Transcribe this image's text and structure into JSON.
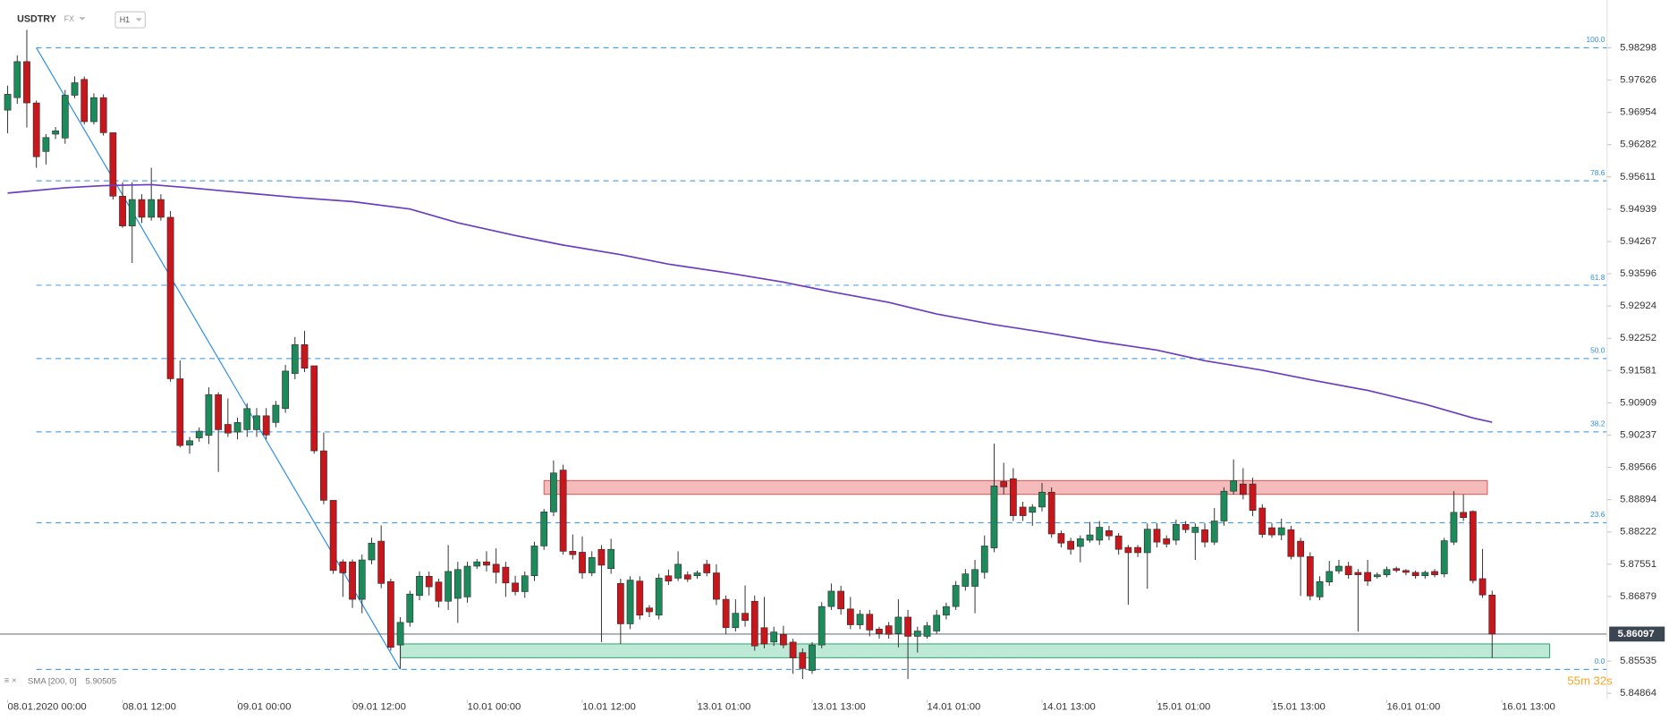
{
  "chart_data": {
    "type": "candlestick",
    "symbol": "USDTRY",
    "market": "FX",
    "interval": "H1",
    "colors": {
      "up": "#1d8a5b",
      "down": "#c8161d",
      "outline": "#2b2b2b"
    },
    "open": [
      5.97,
      5.9726,
      5.9801,
      5.9715,
      5.9614,
      5.965,
      5.9642,
      5.9731,
      5.9764,
      5.9676,
      5.9726,
      5.9653,
      5.9521,
      5.9459,
      5.9514,
      5.9477,
      5.9514,
      5.9477,
      5.9141,
      5.9003,
      5.9018,
      5.9023,
      5.9108,
      5.9046,
      5.903,
      5.9035,
      5.9035,
      5.9064,
      5.905,
      5.9079,
      5.9152,
      5.9212,
      5.9168,
      5.8991,
      5.8888,
      5.876,
      5.876,
      5.8682,
      5.8764,
      5.8803,
      5.8719,
      5.8587,
      5.8634,
      5.869,
      5.873,
      5.8718,
      5.8678,
      5.8684,
      5.8687,
      5.8751,
      5.876,
      5.8755,
      5.8749,
      5.8716,
      5.8698,
      5.8731,
      5.8793,
      5.8864,
      5.8951,
      5.8782,
      5.878,
      5.8737,
      5.8786,
      5.8746,
      5.8715,
      5.8631,
      5.872,
      5.8664,
      5.8649,
      5.8731,
      5.8726,
      5.8733,
      5.8731,
      5.8755,
      5.8737,
      5.8682,
      5.8623,
      5.8653,
      5.8678,
      5.8623,
      5.8593,
      5.8609,
      5.8593,
      5.8571,
      5.8534,
      5.8587,
      5.8667,
      5.8699,
      5.8662,
      5.8629,
      5.8651,
      5.862,
      5.8627,
      5.8611,
      5.8645,
      5.8605,
      5.8605,
      5.8616,
      5.8649,
      5.8667,
      5.8709,
      5.8709,
      5.8738,
      5.8789,
      5.8927,
      5.8933,
      5.8874,
      5.8863,
      5.8874,
      5.8905,
      5.8819,
      5.8803,
      5.8792,
      5.8805,
      5.8805,
      5.8825,
      5.8814,
      5.879,
      5.879,
      5.8779,
      5.8828,
      5.8808,
      5.8805,
      5.8838,
      5.8821,
      5.8827,
      5.8801,
      5.8845,
      5.8907,
      5.8922,
      5.8922,
      5.8872,
      5.8831,
      5.8816,
      5.8827,
      5.8803,
      5.8771,
      5.8687,
      5.8718,
      5.8741,
      5.8751,
      5.8738,
      5.8738,
      5.8729,
      5.8733,
      5.8746,
      5.8742,
      5.8738,
      5.8731,
      5.874,
      5.8735,
      5.8801,
      5.8863,
      5.8865,
      5.8725,
      5.8691
    ],
    "high": [
      5.9751,
      5.9814,
      5.9867,
      5.972,
      5.965,
      5.9665,
      5.9742,
      5.977,
      5.977,
      5.9735,
      5.9733,
      5.9653,
      5.955,
      5.955,
      5.9525,
      5.958,
      5.9525,
      5.949,
      5.9179,
      5.902,
      5.904,
      5.9123,
      5.9113,
      5.91,
      5.906,
      5.909,
      5.908,
      5.908,
      5.9095,
      5.917,
      5.9228,
      5.9241,
      5.9168,
      5.9029,
      5.8888,
      5.8765,
      5.8765,
      5.8775,
      5.881,
      5.8836,
      5.8725,
      5.8645,
      5.87,
      5.874,
      5.874,
      5.8725,
      5.8795,
      5.876,
      5.876,
      5.8766,
      5.8782,
      5.8788,
      5.876,
      5.8731,
      5.874,
      5.8802,
      5.887,
      5.8971,
      5.8962,
      5.8817,
      5.8813,
      5.8782,
      5.8795,
      5.8808,
      5.8725,
      5.873,
      5.873,
      5.867,
      5.8735,
      5.8744,
      5.8782,
      5.874,
      5.8742,
      5.8764,
      5.8755,
      5.869,
      5.8682,
      5.8711,
      5.869,
      5.8687,
      5.8625,
      5.8627,
      5.86,
      5.858,
      5.8593,
      5.8676,
      5.8715,
      5.871,
      5.8687,
      5.866,
      5.866,
      5.8625,
      5.8635,
      5.8682,
      5.866,
      5.8625,
      5.8635,
      5.866,
      5.8675,
      5.872,
      5.8745,
      5.8764,
      5.8815,
      5.9006,
      5.8966,
      5.8955,
      5.8885,
      5.888,
      5.8924,
      5.8915,
      5.8825,
      5.881,
      5.8815,
      5.8843,
      5.8845,
      5.8835,
      5.882,
      5.8795,
      5.8795,
      5.884,
      5.884,
      5.8815,
      5.8848,
      5.8845,
      5.884,
      5.884,
      5.8872,
      5.8915,
      5.8973,
      5.8955,
      5.8935,
      5.888,
      5.884,
      5.885,
      5.8835,
      5.881,
      5.878,
      5.873,
      5.8762,
      5.8764,
      5.876,
      5.8745,
      5.8764,
      5.8738,
      5.875,
      5.875,
      5.8745,
      5.8742,
      5.8742,
      5.8745,
      5.881,
      5.8907,
      5.89,
      5.8867,
      5.8787,
      5.87
    ],
    "low": [
      5.9652,
      5.9713,
      5.9664,
      5.958,
      5.9587,
      5.964,
      5.963,
      5.9725,
      5.967,
      5.967,
      5.9647,
      5.9514,
      5.9455,
      5.9382,
      5.9465,
      5.947,
      5.947,
      5.9135,
      5.8998,
      5.8985,
      5.901,
      5.9005,
      5.8947,
      5.902,
      5.9015,
      5.902,
      5.902,
      5.9015,
      5.904,
      5.907,
      5.914,
      5.9155,
      5.8985,
      5.888,
      5.8735,
      5.8687,
      5.8664,
      5.8653,
      5.8755,
      5.8705,
      5.8575,
      5.8538,
      5.8625,
      5.868,
      5.869,
      5.8665,
      5.866,
      5.8633,
      5.8675,
      5.8745,
      5.874,
      5.8715,
      5.8687,
      5.869,
      5.8685,
      5.872,
      5.8785,
      5.8855,
      5.8775,
      5.8765,
      5.8725,
      5.873,
      5.8593,
      5.8735,
      5.8589,
      5.862,
      5.864,
      5.8645,
      5.864,
      5.8712,
      5.872,
      5.8718,
      5.8725,
      5.873,
      5.867,
      5.861,
      5.8615,
      5.8625,
      5.8575,
      5.858,
      5.8585,
      5.858,
      5.8527,
      5.8516,
      5.8527,
      5.858,
      5.866,
      5.865,
      5.862,
      5.862,
      5.8605,
      5.86,
      5.86,
      5.8582,
      5.8516,
      5.8571,
      5.86,
      5.861,
      5.864,
      5.866,
      5.87,
      5.8653,
      5.8725,
      5.878,
      5.89,
      5.8845,
      5.8845,
      5.8835,
      5.8865,
      5.881,
      5.879,
      5.8775,
      5.8759,
      5.88,
      5.8795,
      5.8805,
      5.8775,
      5.8671,
      5.877,
      5.8704,
      5.879,
      5.879,
      5.8795,
      5.882,
      5.8764,
      5.879,
      5.8795,
      5.8835,
      5.89,
      5.889,
      5.8855,
      5.881,
      5.881,
      5.8805,
      5.8765,
      5.8689,
      5.868,
      5.868,
      5.871,
      5.8735,
      5.8725,
      5.8615,
      5.871,
      5.8725,
      5.8728,
      5.8738,
      5.8732,
      5.8725,
      5.8725,
      5.8728,
      5.8728,
      5.8795,
      5.8845,
      5.8715,
      5.8685,
      5.856
    ],
    "close": [
      5.9733,
      5.9801,
      5.9715,
      5.9603,
      5.9643,
      5.9657,
      5.9731,
      5.9757,
      5.9676,
      5.9726,
      5.9653,
      5.9521,
      5.9459,
      5.9514,
      5.9477,
      5.9514,
      5.9477,
      5.9141,
      5.9002,
      5.9012,
      5.9032,
      5.9108,
      5.9035,
      5.9028,
      5.905,
      5.9079,
      5.9064,
      5.9024,
      5.9086,
      5.9157,
      5.9212,
      5.9163,
      5.8991,
      5.8888,
      5.8742,
      5.8737,
      5.8682,
      5.8764,
      5.8799,
      5.8715,
      5.8582,
      5.8634,
      5.8693,
      5.873,
      5.8708,
      5.8678,
      5.874,
      5.8744,
      5.8751,
      5.876,
      5.8753,
      5.8738,
      5.8716,
      5.8698,
      5.8731,
      5.8793,
      5.8864,
      5.8945,
      5.8782,
      5.8775,
      5.8737,
      5.8769,
      5.8753,
      5.8786,
      5.8631,
      5.8722,
      5.8649,
      5.8656,
      5.8726,
      5.872,
      5.8755,
      5.8724,
      5.8737,
      5.8737,
      5.8682,
      5.8623,
      5.8653,
      5.8638,
      5.8585,
      5.8589,
      5.8614,
      5.8587,
      5.856,
      5.8538,
      5.8587,
      5.8667,
      5.8699,
      5.8662,
      5.8629,
      5.8651,
      5.8618,
      5.8611,
      5.8609,
      5.8645,
      5.8605,
      5.8616,
      5.8627,
      5.8649,
      5.8667,
      5.8711,
      5.8735,
      5.8744,
      5.8793,
      5.8918,
      5.8916,
      5.8856,
      5.8856,
      5.8874,
      5.8905,
      5.8818,
      5.8799,
      5.8786,
      5.8808,
      5.8816,
      5.8832,
      5.8814,
      5.8786,
      5.8779,
      5.8779,
      5.8828,
      5.8801,
      5.8797,
      5.8838,
      5.8827,
      5.8832,
      5.8801,
      5.8845,
      5.8907,
      5.8929,
      5.89,
      5.8867,
      5.8817,
      5.8816,
      5.8831,
      5.8771,
      5.8771,
      5.8689,
      5.8719,
      5.874,
      5.8751,
      5.8733,
      5.8733,
      5.872,
      5.8733,
      5.8744,
      5.8742,
      5.8738,
      5.8731,
      5.8738,
      5.8733,
      5.8804,
      5.8863,
      5.8852,
      5.8721,
      5.8691,
      5.86097
    ],
    "xlim": [
      -0.8,
      167
    ],
    "xticks": [
      {
        "value": 0,
        "label": "08.01.2020  00:00"
      },
      {
        "value": 12,
        "label": "08.01 12:00"
      },
      {
        "value": 24,
        "label": "09.01 00:00"
      },
      {
        "value": 36,
        "label": "09.01 12:00"
      },
      {
        "value": 48,
        "label": "10.01 00:00"
      },
      {
        "value": 60,
        "label": "10.01 12:00"
      },
      {
        "value": 72,
        "label": "13.01 01:00"
      },
      {
        "value": 84,
        "label": "13.01 13:00"
      },
      {
        "value": 96,
        "label": "14.01 01:00"
      },
      {
        "value": 108,
        "label": "14.01 13:00"
      },
      {
        "value": 120,
        "label": "15.01 01:00"
      },
      {
        "value": 132,
        "label": "15.01 13:00"
      },
      {
        "value": 144,
        "label": "16.01 01:00"
      },
      {
        "value": 156,
        "label": "16.01 13:00"
      }
    ],
    "ylim": [
      5.84731,
      5.99292
    ],
    "yticks": [
      5.98298,
      5.97626,
      5.96954,
      5.96282,
      5.95611,
      5.94939,
      5.94267,
      5.93596,
      5.92924,
      5.92252,
      5.91581,
      5.90909,
      5.90237,
      5.89566,
      5.88894,
      5.88222,
      5.87551,
      5.86879,
      5.85535,
      5.84864
    ],
    "sma": {
      "label": "SMA [200, 0]",
      "color": "#6a3cc0",
      "x": [
        0,
        6,
        10,
        15,
        19,
        25,
        30,
        36,
        42,
        47,
        53,
        58,
        64,
        69,
        75,
        81,
        86,
        92,
        97,
        103,
        108,
        114,
        120,
        125,
        131,
        136,
        142,
        148,
        153,
        155
      ],
      "values": [
        5.95274,
        5.95384,
        5.95428,
        5.9545,
        5.95384,
        5.95274,
        5.95185,
        5.95097,
        5.94943,
        5.94656,
        5.94391,
        5.94192,
        5.93994,
        5.93795,
        5.93618,
        5.9342,
        5.93221,
        5.93,
        5.92757,
        5.92537,
        5.92383,
        5.92184,
        5.92007,
        5.91786,
        5.91588,
        5.91389,
        5.91168,
        5.90881,
        5.90594,
        5.90505
      ]
    },
    "fibonacci": {
      "color": "#2d8fe3",
      "from": 3,
      "levels": [
        {
          "label": "100.0",
          "value": 5.98298
        },
        {
          "label": "78.6",
          "value": 5.9553
        },
        {
          "label": "61.8",
          "value": 5.93356
        },
        {
          "label": "50.0",
          "value": 5.9183
        },
        {
          "label": "38.2",
          "value": 5.90304
        },
        {
          "label": "23.6",
          "value": 5.88415
        },
        {
          "label": "0.0",
          "value": 5.85362
        }
      ]
    },
    "trendline": {
      "color": "#2d8fe3",
      "x": [
        3,
        41
      ],
      "values": [
        5.98298,
        5.85362
      ]
    },
    "zones": [
      {
        "color": "#f2a3a3",
        "stroke": "#d9534f",
        "x": [
          56,
          154.5
        ],
        "values": [
          5.89005,
          5.89291
        ]
      },
      {
        "color": "#a8e2c8",
        "stroke": "#27a06b",
        "x": [
          41,
          161
        ],
        "values": [
          5.85605,
          5.85892
        ]
      }
    ],
    "last_price": 5.86097,
    "countdown": "55m 32s"
  }
}
